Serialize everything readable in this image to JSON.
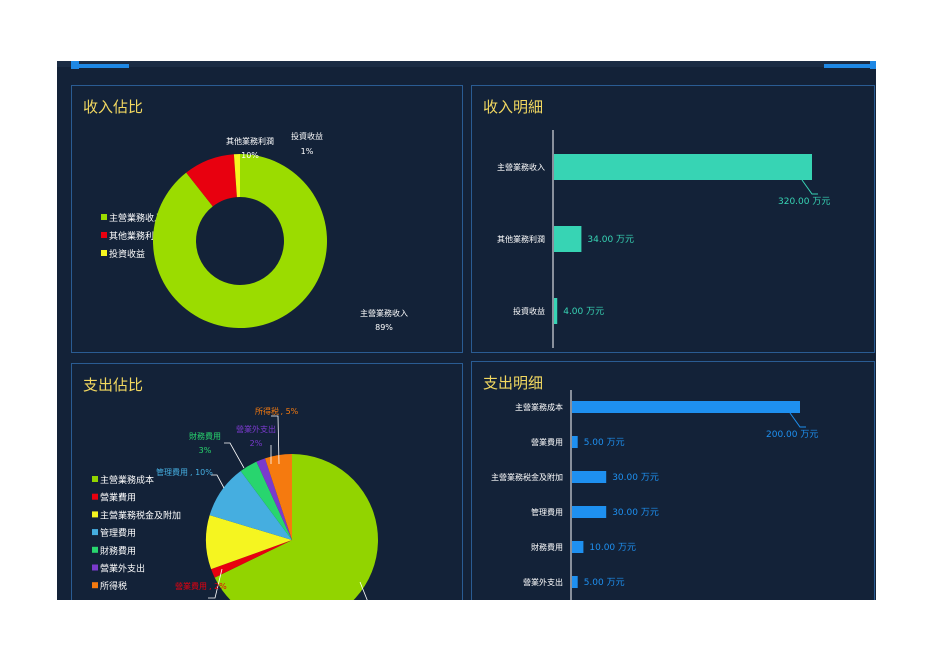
{
  "colors": {
    "background": "#132238",
    "panel_border": "#2a5c93",
    "title": "#f2d860",
    "income_bar": "#37d4b4",
    "expense_bar": "#1e90f0"
  },
  "panels": {
    "income_share": {
      "title": "收入佔比"
    },
    "income_detail": {
      "title": "收入明細"
    },
    "expense_share": {
      "title": "支出佔比"
    },
    "expense_detail": {
      "title": "支出明细"
    }
  },
  "chart_data": [
    {
      "id": "income_share",
      "type": "pie",
      "donut": true,
      "legend_position": "left",
      "slices": [
        {
          "name": "主營業務收入",
          "percent_label": "89%",
          "value": 320,
          "color": "#9bdc00"
        },
        {
          "name": "其他業務利潤",
          "percent_label": "10%",
          "value": 34,
          "color": "#e8000f"
        },
        {
          "name": "投資收益",
          "percent_label": "1%",
          "value": 4,
          "color": "#f5f520"
        }
      ]
    },
    {
      "id": "income_detail",
      "type": "bar",
      "orientation": "horizontal",
      "unit": "万元",
      "categories": [
        "主營業務收入",
        "其他業務利潤",
        "投資收益"
      ],
      "values": [
        320,
        34,
        4
      ],
      "value_labels": [
        "320.00 万元",
        "34.00 万元",
        "4.00 万元"
      ],
      "xlim": [
        0,
        320
      ]
    },
    {
      "id": "expense_share",
      "type": "pie",
      "legend_position": "left",
      "slices": [
        {
          "name": "主營業務成本",
          "percent_label": "",
          "value": 200,
          "color": "#92d400"
        },
        {
          "name": "營業費用",
          "percent_label": "2%",
          "value": 5,
          "color": "#e8000f"
        },
        {
          "name": "主營業務税金及附加",
          "percent_label": "",
          "value": 30,
          "color": "#f5f520"
        },
        {
          "name": "管理費用",
          "percent_label": "10%",
          "value": 30,
          "color": "#45aee0"
        },
        {
          "name": "財務費用",
          "percent_label": "3%",
          "value": 10,
          "color": "#28d56e"
        },
        {
          "name": "營業外支出",
          "percent_label": "2%",
          "value": 5,
          "color": "#7a3acd"
        },
        {
          "name": "所得税",
          "percent_label": "5%",
          "value": 15,
          "color": "#f57a0f"
        }
      ]
    },
    {
      "id": "expense_detail",
      "type": "bar",
      "orientation": "horizontal",
      "unit": "万元",
      "categories": [
        "主營業務成本",
        "營業費用",
        "主營業務税金及附加",
        "管理費用",
        "財務費用",
        "營業外支出"
      ],
      "values": [
        200,
        5,
        30,
        30,
        10,
        5
      ],
      "value_labels": [
        "200.00 万元",
        "5.00 万元",
        "30.00 万元",
        "30.00 万元",
        "10.00 万元",
        "5.00 万元"
      ],
      "xlim": [
        0,
        200
      ]
    }
  ]
}
